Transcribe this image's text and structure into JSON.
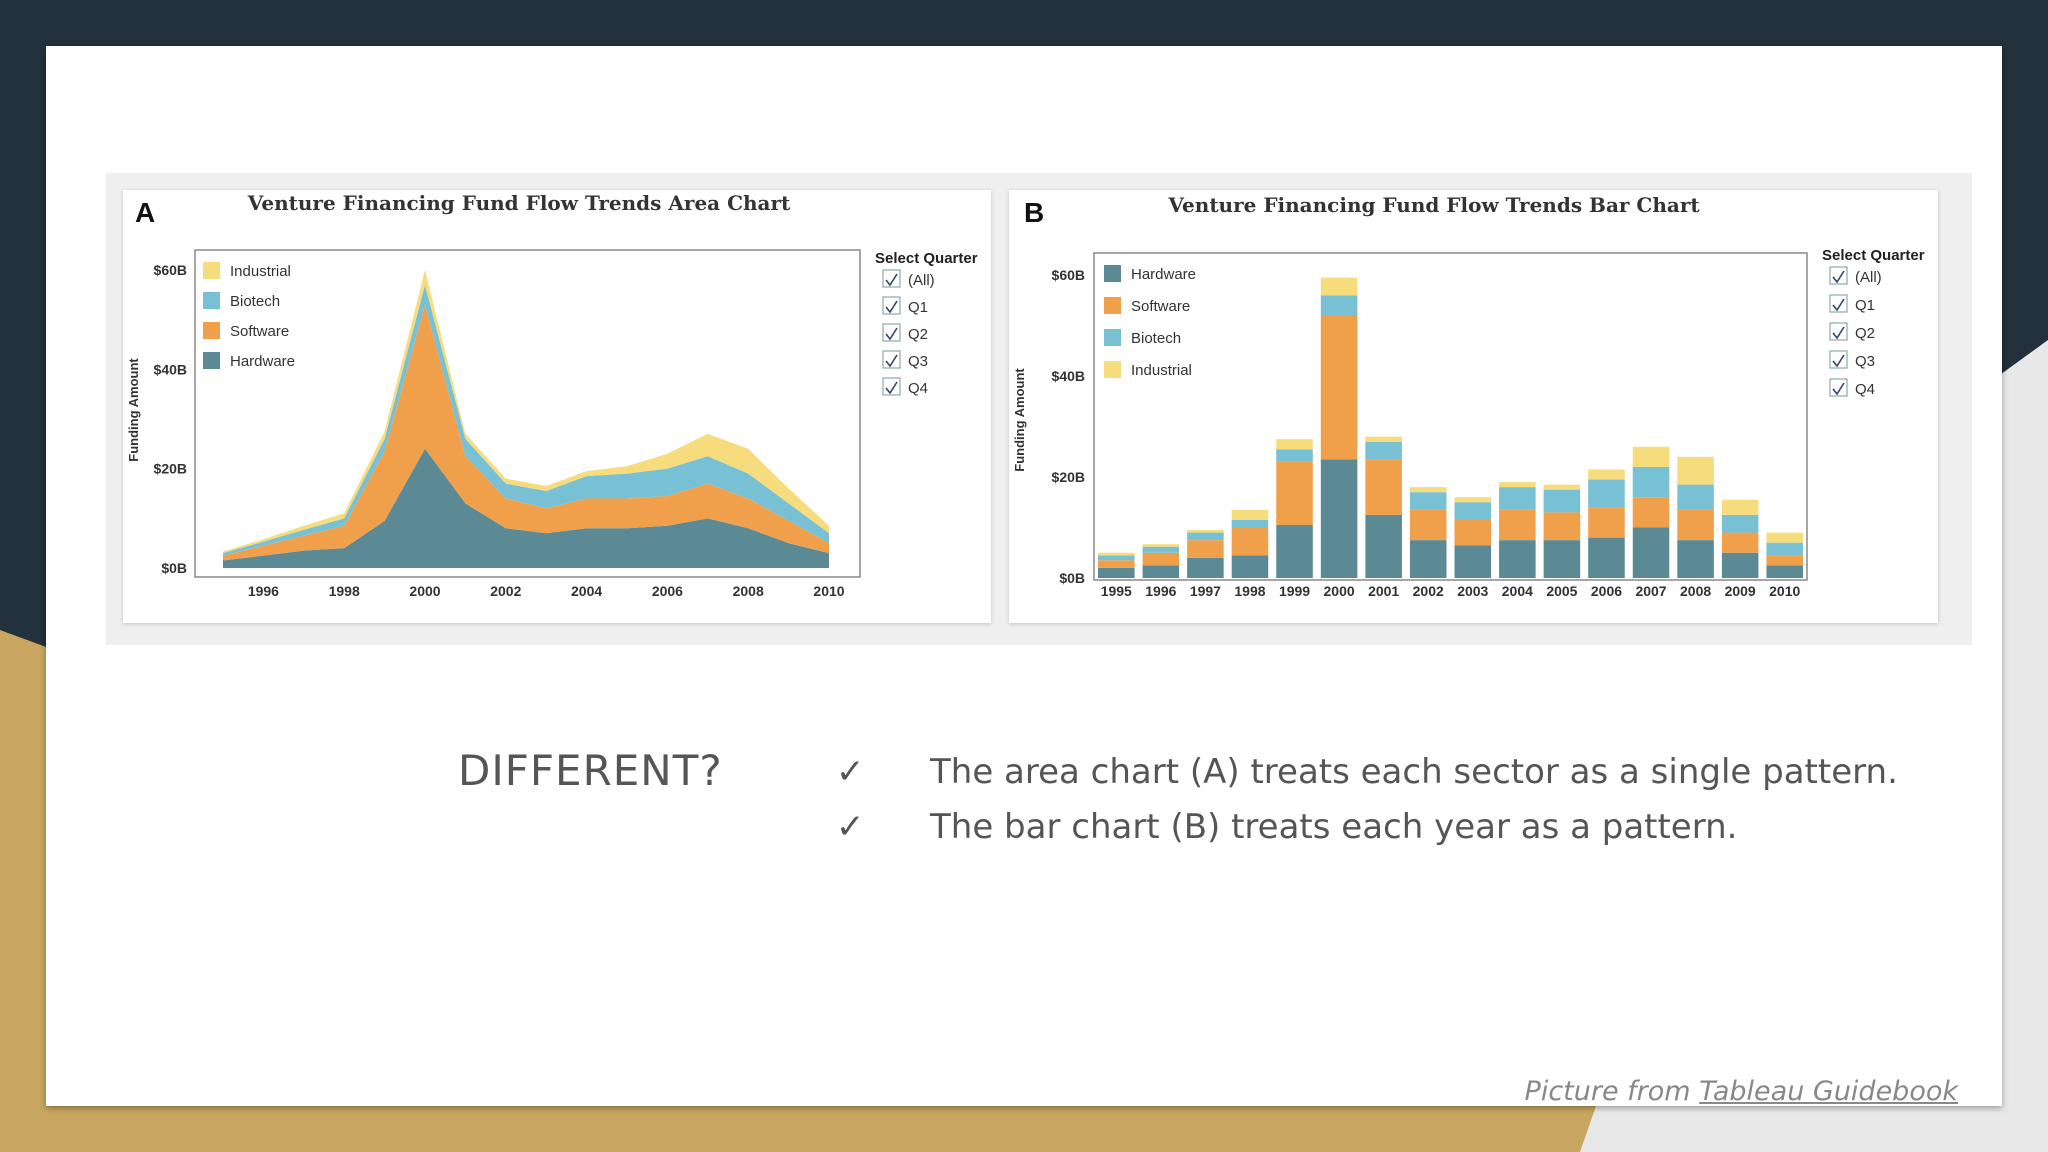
{
  "colors": {
    "background": "#22313c",
    "gold": "#c8a660",
    "hardware": "#5b8a94",
    "software": "#f0a04b",
    "biotech": "#78c0d4",
    "industrial": "#f6dc7c"
  },
  "panel_a": {
    "letter": "A"
  },
  "panel_b": {
    "letter": "B"
  },
  "filter": {
    "title": "Select Quarter",
    "options": [
      {
        "label": "(All)",
        "checked": true
      },
      {
        "label": "Q1",
        "checked": true
      },
      {
        "label": "Q2",
        "checked": true
      },
      {
        "label": "Q3",
        "checked": true
      },
      {
        "label": "Q4",
        "checked": true
      }
    ]
  },
  "chart_data": [
    {
      "type": "area",
      "title": "Venture Financing Fund Flow Trends Area Chart",
      "ylabel": "Funding Amount",
      "xlabel": "",
      "stacked": true,
      "ylim": [
        0,
        60
      ],
      "y_ticks": [
        "$0B",
        "$20B",
        "$40B",
        "$60B"
      ],
      "x_ticks": [
        "1996",
        "1998",
        "2000",
        "2002",
        "2004",
        "2006",
        "2008",
        "2010"
      ],
      "x": [
        1995,
        1996,
        1997,
        1998,
        1999,
        2000,
        2001,
        2002,
        2003,
        2004,
        2005,
        2006,
        2007,
        2008,
        2009,
        2010
      ],
      "legend": [
        "Industrial",
        "Biotech",
        "Software",
        "Hardware"
      ],
      "legend_position": "top-left",
      "series": [
        {
          "name": "Hardware",
          "values": [
            1.5,
            2.5,
            3.5,
            4,
            9.5,
            24,
            13,
            8,
            7,
            8,
            8,
            8.5,
            10,
            8,
            5,
            3
          ]
        },
        {
          "name": "Software",
          "values": [
            1,
            2,
            3,
            4.5,
            14,
            29,
            9.5,
            6,
            5,
            6,
            6,
            6,
            7,
            6,
            4.5,
            2
          ]
        },
        {
          "name": "Biotech",
          "values": [
            0.5,
            0.8,
            1.2,
            1.5,
            2.5,
            4,
            3.5,
            3,
            3.5,
            4.5,
            5,
            5.5,
            5.5,
            5,
            3.5,
            2
          ]
        },
        {
          "name": "Industrial",
          "values": [
            0.3,
            0.5,
            0.8,
            1,
            1.5,
            3,
            1,
            1,
            1,
            1,
            1.5,
            3,
            4.5,
            5,
            3,
            1.5
          ]
        }
      ]
    },
    {
      "type": "bar",
      "title": "Venture Financing Fund Flow Trends Bar Chart",
      "ylabel": "Funding Amount",
      "xlabel": "",
      "stacked": true,
      "ylim": [
        0,
        62
      ],
      "y_ticks": [
        "$0B",
        "$20B",
        "$40B",
        "$60B"
      ],
      "categories": [
        "1995",
        "1996",
        "1997",
        "1998",
        "1999",
        "2000",
        "2001",
        "2002",
        "2003",
        "2004",
        "2005",
        "2006",
        "2007",
        "2008",
        "2009",
        "2010"
      ],
      "legend": [
        "Hardware",
        "Software",
        "Biotech",
        "Industrial"
      ],
      "legend_position": "top-left",
      "series": [
        {
          "name": "Hardware",
          "values": [
            2,
            2.5,
            4,
            4.5,
            10.5,
            23.5,
            12.5,
            7.5,
            6.5,
            7.5,
            7.5,
            8,
            10,
            7.5,
            5,
            2.5
          ]
        },
        {
          "name": "Software",
          "values": [
            1.5,
            2.5,
            3.5,
            5.5,
            12.5,
            28.5,
            11,
            6,
            5,
            6,
            5.5,
            6,
            6,
            6,
            4,
            2
          ]
        },
        {
          "name": "Biotech",
          "values": [
            1,
            1.2,
            1.5,
            1.5,
            2.5,
            4,
            3.5,
            3.5,
            3.5,
            4.5,
            4.5,
            5.5,
            6,
            5,
            3.5,
            2.5
          ]
        },
        {
          "name": "Industrial",
          "values": [
            0.5,
            0.5,
            0.5,
            2,
            2,
            3.5,
            1,
            1,
            1,
            1,
            1,
            2,
            4,
            5.5,
            3,
            2
          ]
        }
      ]
    }
  ],
  "text": {
    "heading": "DIFFERENT?",
    "bullets": [
      {
        "check": "✓",
        "text": "The area chart (A) treats each sector as a single pattern."
      },
      {
        "check": "✓",
        "text": "The bar chart (B) treats each year as a pattern."
      }
    ],
    "credit_prefix": "Picture from",
    "credit_link": "Tableau Guidebook"
  }
}
